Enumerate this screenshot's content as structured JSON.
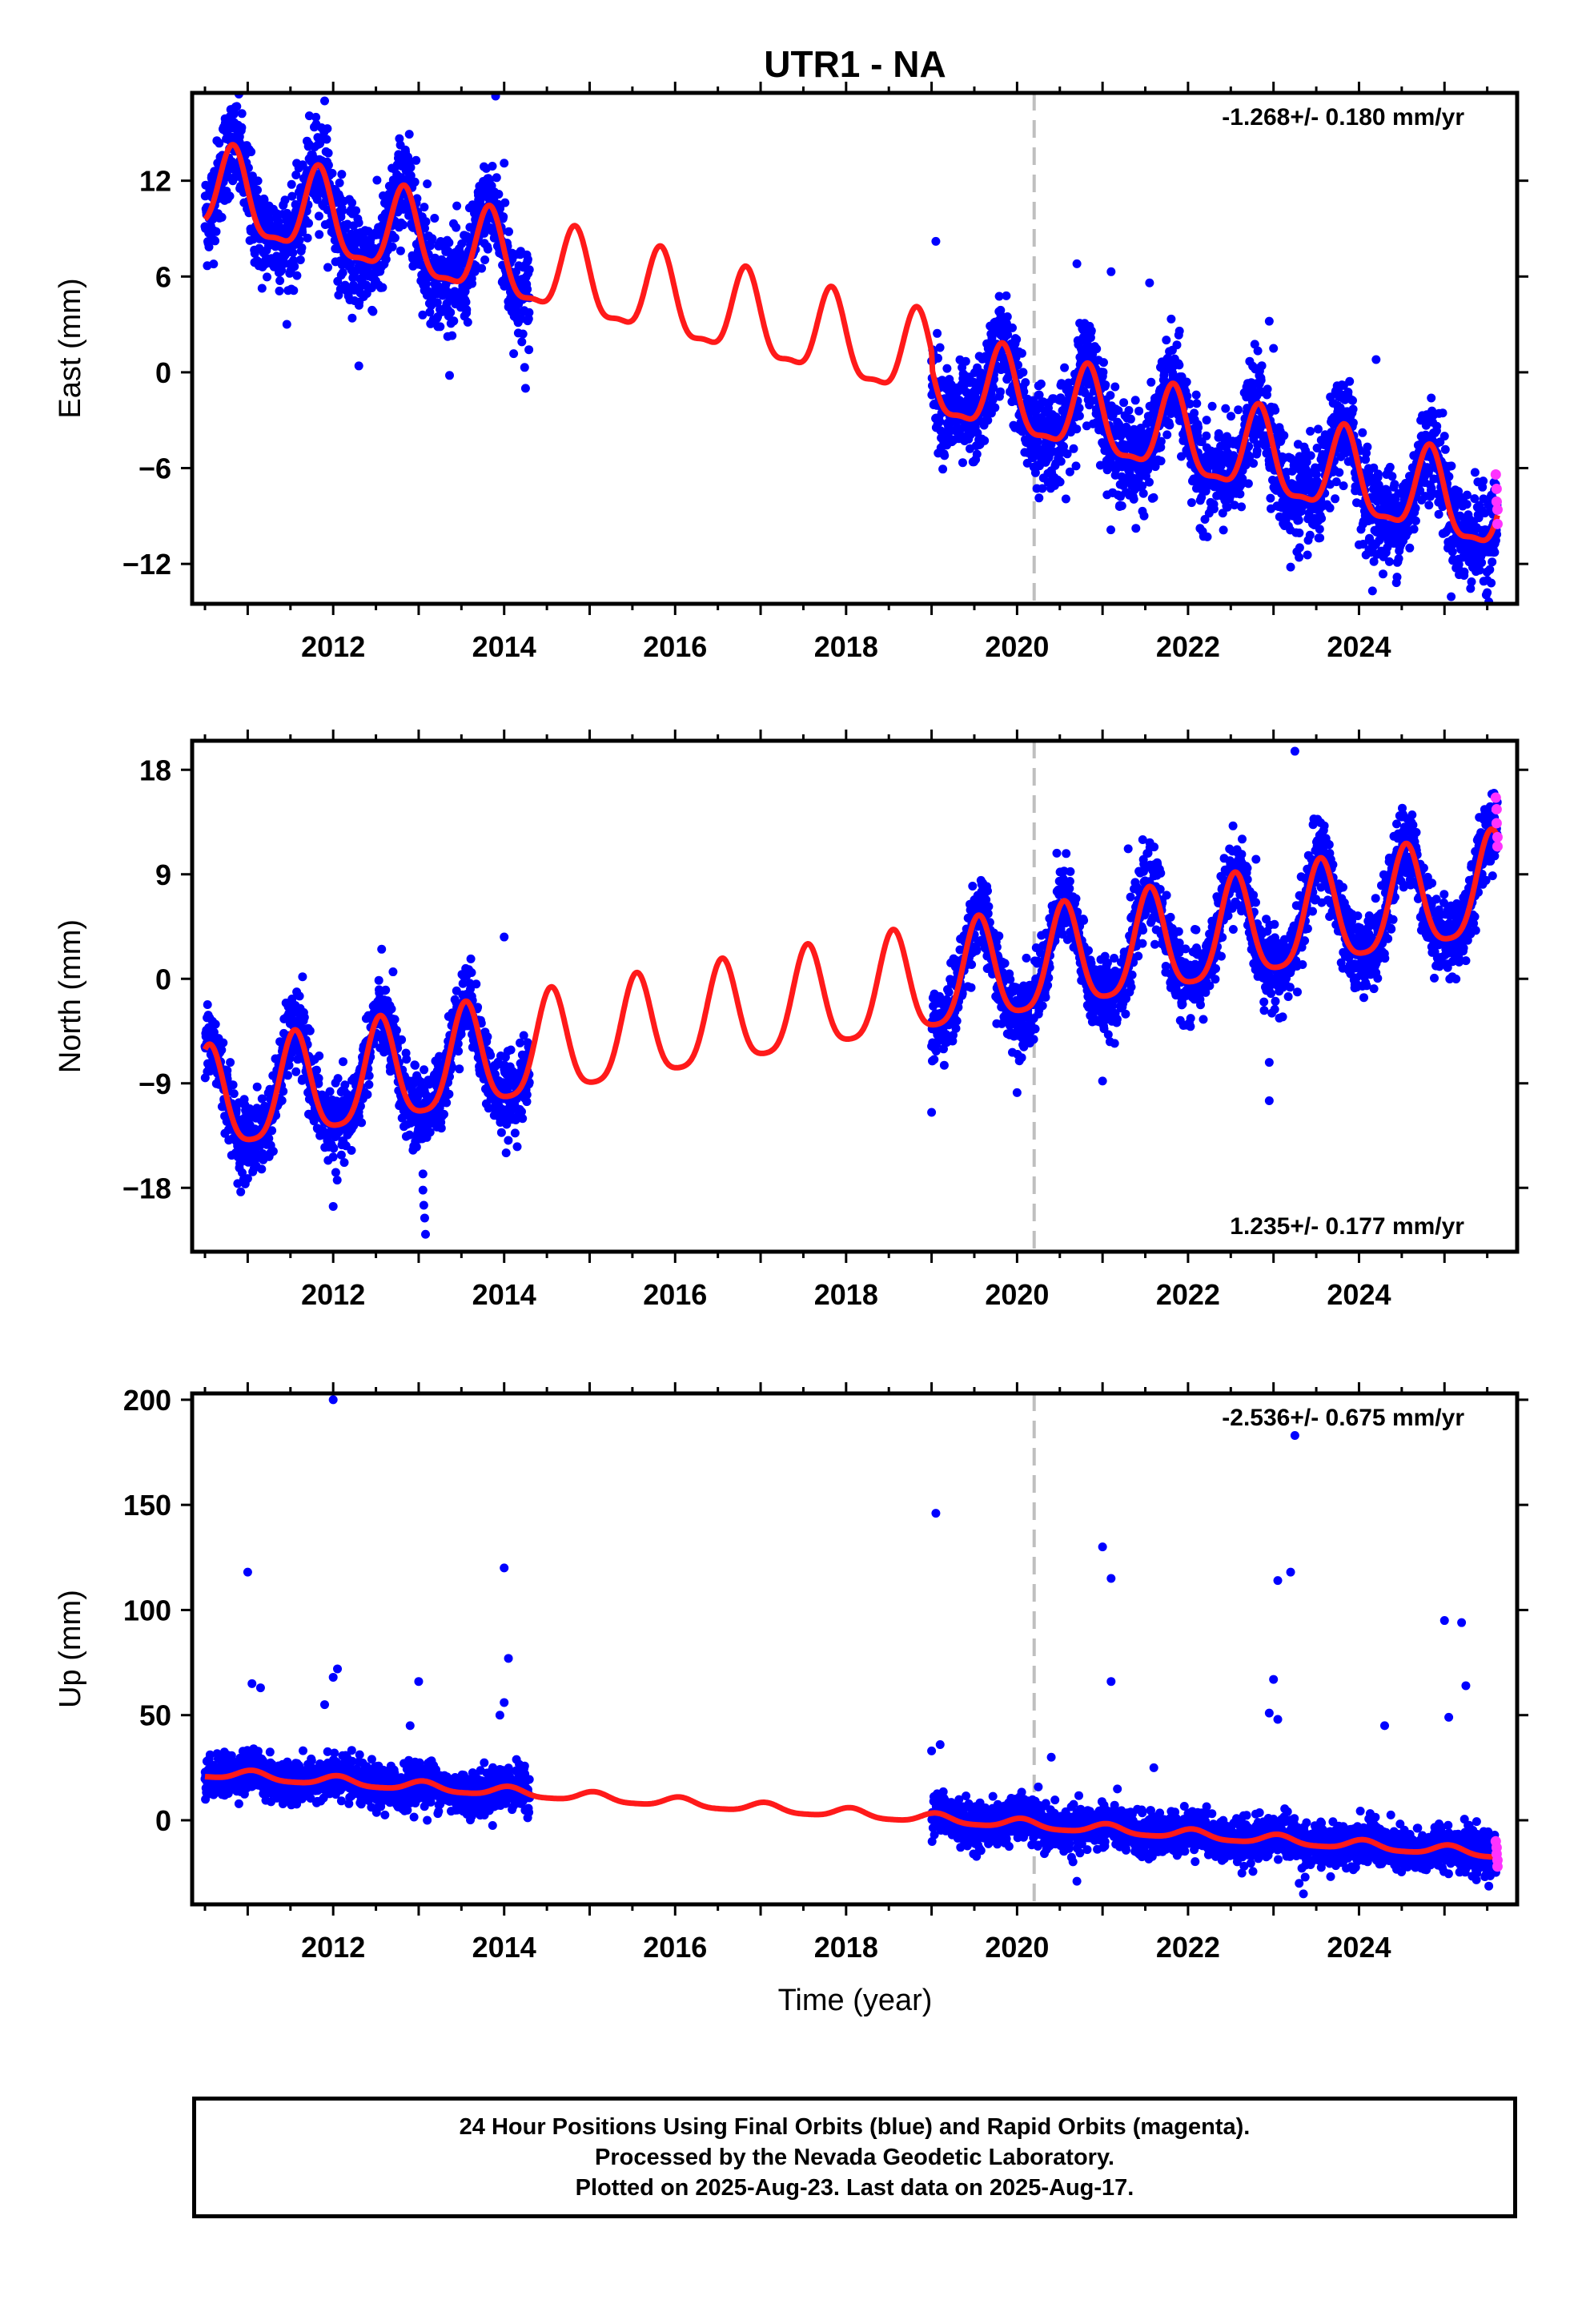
{
  "title": "UTR1 - NA",
  "xlabel": "Time (year)",
  "caption": [
    "24 Hour Positions Using Final Orbits (blue) and Rapid Orbits (magenta).",
    "Processed by the Nevada Geodetic Laboratory.",
    "Plotted on 2025-Aug-23. Last data on 2025-Aug-17."
  ],
  "colors": {
    "final_orbits": "#0000ff",
    "rapid_orbits": "#ff33ff",
    "model": "#ff1a1a",
    "event_line": "#bfbfbf"
  },
  "chart_data": [
    {
      "type": "scatter",
      "name": "east",
      "ylabel": "East (mm)",
      "rate_label": "-1.268+/- 0.180 mm/yr",
      "xlim": [
        2010.35,
        2025.85
      ],
      "ylim": [
        -14.5,
        17.5
      ],
      "yticks": [
        12,
        6,
        0,
        -6,
        -12
      ],
      "xticks": [
        2012,
        2014,
        2016,
        2018,
        2020,
        2022,
        2024
      ],
      "event_x": 2020.2,
      "segments": [
        [
          2010.5,
          2014.3
        ],
        [
          2019.0,
          2025.62
        ]
      ],
      "model": {
        "ref": 2016,
        "offset": 4.3,
        "rate": -1.268,
        "annual_amp": 2.6,
        "annual_phase_peak": 0.83,
        "semi_amp": 0.8
      },
      "jumps": [
        {
          "at": 2019.0,
          "size": -1.0
        }
      ],
      "noise_sd": 1.5,
      "rapid_points": [
        [
          2025.6,
          -6.4
        ],
        [
          2025.61,
          -7.3
        ],
        [
          2025.61,
          -8.1
        ],
        [
          2025.62,
          -8.6
        ],
        [
          2025.62,
          -9.5
        ]
      ],
      "outliers": [
        [
          2011.9,
          17.0
        ],
        [
          2012.1,
          12.4
        ],
        [
          2012.8,
          13.0
        ],
        [
          2013.9,
          17.3
        ],
        [
          2014.0,
          13.1
        ],
        [
          2013.1,
          11.8
        ],
        [
          2014.25,
          -1.0
        ],
        [
          2019.05,
          8.2
        ],
        [
          2020.7,
          6.8
        ],
        [
          2021.1,
          6.3
        ],
        [
          2021.55,
          5.6
        ],
        [
          2022.95,
          3.2
        ],
        [
          2023.0,
          1.5
        ],
        [
          2024.2,
          0.8
        ],
        [
          2024.0,
          -10.8
        ],
        [
          2023.2,
          -12.2
        ],
        [
          2025.5,
          -13.8
        ],
        [
          2025.0,
          -4.0
        ],
        [
          2013.7,
          10.8
        ],
        [
          2012.3,
          0.4
        ],
        [
          2014.22,
          2.4
        ]
      ]
    },
    {
      "type": "scatter",
      "name": "north",
      "ylabel": "North (mm)",
      "rate_label": "1.235+/- 0.177 mm/yr",
      "xlim": [
        2010.35,
        2025.85
      ],
      "ylim": [
        -23.5,
        20.5
      ],
      "yticks": [
        18,
        9,
        0,
        -9,
        -18
      ],
      "xticks": [
        2012,
        2014,
        2016,
        2018,
        2020,
        2022,
        2024
      ],
      "event_x": 2020.2,
      "segments": [
        [
          2010.5,
          2014.3
        ],
        [
          2019.0,
          2025.62
        ]
      ],
      "model": {
        "ref": 2016,
        "offset": -4.2,
        "rate": 1.235,
        "annual_amp": 4.4,
        "annual_phase_peak": 0.55,
        "semi_amp": 0.9
      },
      "jumps": [],
      "noise_sd": 1.6,
      "rapid_points": [
        [
          2025.6,
          15.6
        ],
        [
          2025.61,
          14.6
        ],
        [
          2025.61,
          13.4
        ],
        [
          2025.62,
          12.2
        ],
        [
          2025.62,
          11.4
        ]
      ],
      "outliers": [
        [
          2014.0,
          3.6
        ],
        [
          2013.05,
          -16.8
        ],
        [
          2013.05,
          -18.2
        ],
        [
          2013.06,
          -19.5
        ],
        [
          2013.07,
          -20.6
        ],
        [
          2013.08,
          -22.0
        ],
        [
          2019.0,
          -11.5
        ],
        [
          2023.25,
          19.6
        ],
        [
          2022.95,
          -7.2
        ],
        [
          2022.95,
          -10.5
        ],
        [
          2020.0,
          -9.8
        ],
        [
          2021.0,
          -8.8
        ],
        [
          2012.0,
          -19.6
        ],
        [
          2011.0,
          -17.2
        ],
        [
          2021.3,
          11.2
        ],
        [
          2019.5,
          6.8
        ],
        [
          2014.05,
          -10.5
        ],
        [
          2012.7,
          0.6
        ]
      ]
    },
    {
      "type": "scatter",
      "name": "up",
      "ylabel": "Up (mm)",
      "rate_label": "-2.536+/- 0.675 mm/yr",
      "xlim": [
        2010.35,
        2025.85
      ],
      "ylim": [
        -40,
        203
      ],
      "yticks": [
        200,
        150,
        100,
        50,
        0
      ],
      "xticks": [
        2012,
        2014,
        2016,
        2018,
        2020,
        2022,
        2024
      ],
      "event_x": 2020.2,
      "segments": [
        [
          2010.5,
          2014.3
        ],
        [
          2019.0,
          2025.62
        ]
      ],
      "model": {
        "ref": 2016,
        "offset": 8.5,
        "rate": -2.536,
        "annual_amp": 2.2,
        "annual_phase_peak": 0.05,
        "semi_amp": 0.5
      },
      "jumps": [],
      "noise_sd": 5,
      "rapid_points": [
        [
          2025.6,
          -10.0
        ],
        [
          2025.61,
          -13.0
        ],
        [
          2025.61,
          -16.0
        ],
        [
          2025.62,
          -19.0
        ],
        [
          2025.62,
          -22.0
        ]
      ],
      "outliers": [
        [
          2012.0,
          200
        ],
        [
          2011.0,
          118
        ],
        [
          2014.0,
          120
        ],
        [
          2019.05,
          146
        ],
        [
          2023.25,
          183
        ],
        [
          2021.0,
          130
        ],
        [
          2021.1,
          115
        ],
        [
          2023.05,
          114
        ],
        [
          2023.2,
          118
        ],
        [
          2025.0,
          95
        ],
        [
          2025.2,
          94
        ],
        [
          2012.05,
          72
        ],
        [
          2012.0,
          68
        ],
        [
          2014.05,
          77
        ],
        [
          2011.05,
          65
        ],
        [
          2011.15,
          63
        ],
        [
          2013.0,
          66
        ],
        [
          2014.0,
          56
        ],
        [
          2021.1,
          66
        ],
        [
          2023.0,
          67
        ],
        [
          2023.05,
          48
        ],
        [
          2025.25,
          64
        ],
        [
          2025.05,
          49
        ],
        [
          2024.3,
          45
        ],
        [
          2022.95,
          51
        ],
        [
          2021.6,
          25
        ],
        [
          2020.4,
          30
        ],
        [
          2023.3,
          -30
        ],
        [
          2023.35,
          -35
        ],
        [
          2020.7,
          -29
        ],
        [
          2019.1,
          36
        ],
        [
          2019.0,
          33
        ],
        [
          2013.1,
          0
        ],
        [
          2011.9,
          55
        ],
        [
          2012.9,
          45
        ],
        [
          2013.95,
          50
        ]
      ]
    }
  ]
}
